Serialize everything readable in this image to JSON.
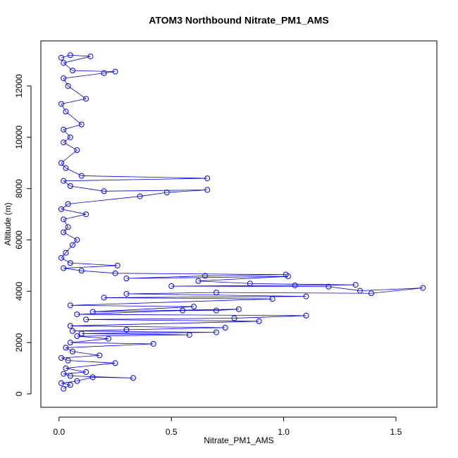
{
  "chart_data": {
    "type": "scatter",
    "connected": true,
    "title": "ATOM3 Northbound Nitrate_PM1_AMS",
    "x_label": "Nitrate_PM1_AMS",
    "y_label": "Altitude (m)",
    "color": "#0000ff",
    "xlim": [
      -0.081,
      1.682
    ],
    "ylim": [
      -522,
      13757
    ],
    "xticks": [
      {
        "value": 0,
        "label": "0.0"
      },
      0.5,
      {
        "value": 1,
        "label": "1.0"
      },
      1.5
    ],
    "yticks": [
      0,
      2000,
      4000,
      6000,
      8000,
      10000,
      12000
    ],
    "x": [
      0.02,
      0.05,
      0.01,
      0.08,
      0.15,
      0.33,
      0.05,
      0.02,
      0.12,
      0.03,
      0.25,
      0.04,
      0.01,
      0.18,
      0.06,
      0.03,
      0.42,
      0.05,
      0.22,
      0.08,
      0.58,
      0.1,
      0.7,
      0.06,
      0.3,
      0.74,
      0.05,
      0.89,
      0.12,
      0.78,
      1.1,
      0.08,
      0.55,
      0.7,
      0.8,
      0.15,
      0.6,
      0.05,
      0.95,
      0.2,
      1.1,
      0.3,
      0.7,
      1.39,
      1.62,
      1.34,
      1.2,
      0.5,
      1.05,
      1.32,
      0.85,
      0.62,
      1.02,
      0.3,
      0.65,
      1.01,
      0.25,
      0.1,
      0.02,
      0.26,
      0.05,
      0.01,
      0.03,
      0.06,
      0.08,
      0.02,
      0.04,
      0.02,
      0.12,
      0.01,
      0.04,
      0.36,
      0.48,
      0.66,
      0.2,
      0.05,
      0.02,
      0.66,
      0.1,
      0.03,
      0.01,
      0.08,
      0.02,
      0.05,
      0.02,
      0.1,
      0.03,
      0.01,
      0.12,
      0.04,
      0.02,
      0.2,
      0.25,
      0.06,
      0.02,
      0.14,
      0.05,
      0.01
    ],
    "values": [
      200,
      350,
      420,
      500,
      650,
      620,
      700,
      780,
      850,
      1000,
      1200,
      1300,
      1400,
      1500,
      1650,
      1800,
      1950,
      2000,
      2150,
      2250,
      2300,
      2350,
      2400,
      2450,
      2500,
      2580,
      2650,
      2830,
      2900,
      2950,
      3050,
      3100,
      3250,
      3250,
      3300,
      3200,
      3400,
      3450,
      3700,
      3750,
      3800,
      3900,
      3950,
      3920,
      4130,
      4020,
      4180,
      4200,
      4230,
      4250,
      4300,
      4400,
      4580,
      4500,
      4600,
      4650,
      4700,
      4800,
      4900,
      5000,
      5100,
      5300,
      5500,
      5800,
      6000,
      6300,
      6500,
      6800,
      7000,
      7200,
      7400,
      7700,
      7850,
      7950,
      7900,
      8100,
      8300,
      8400,
      8500,
      8800,
      9000,
      9500,
      9800,
      10000,
      10300,
      10500,
      11000,
      11300,
      11500,
      12000,
      12300,
      12500,
      12560,
      12600,
      12900,
      13150,
      13200,
      13100
    ]
  }
}
